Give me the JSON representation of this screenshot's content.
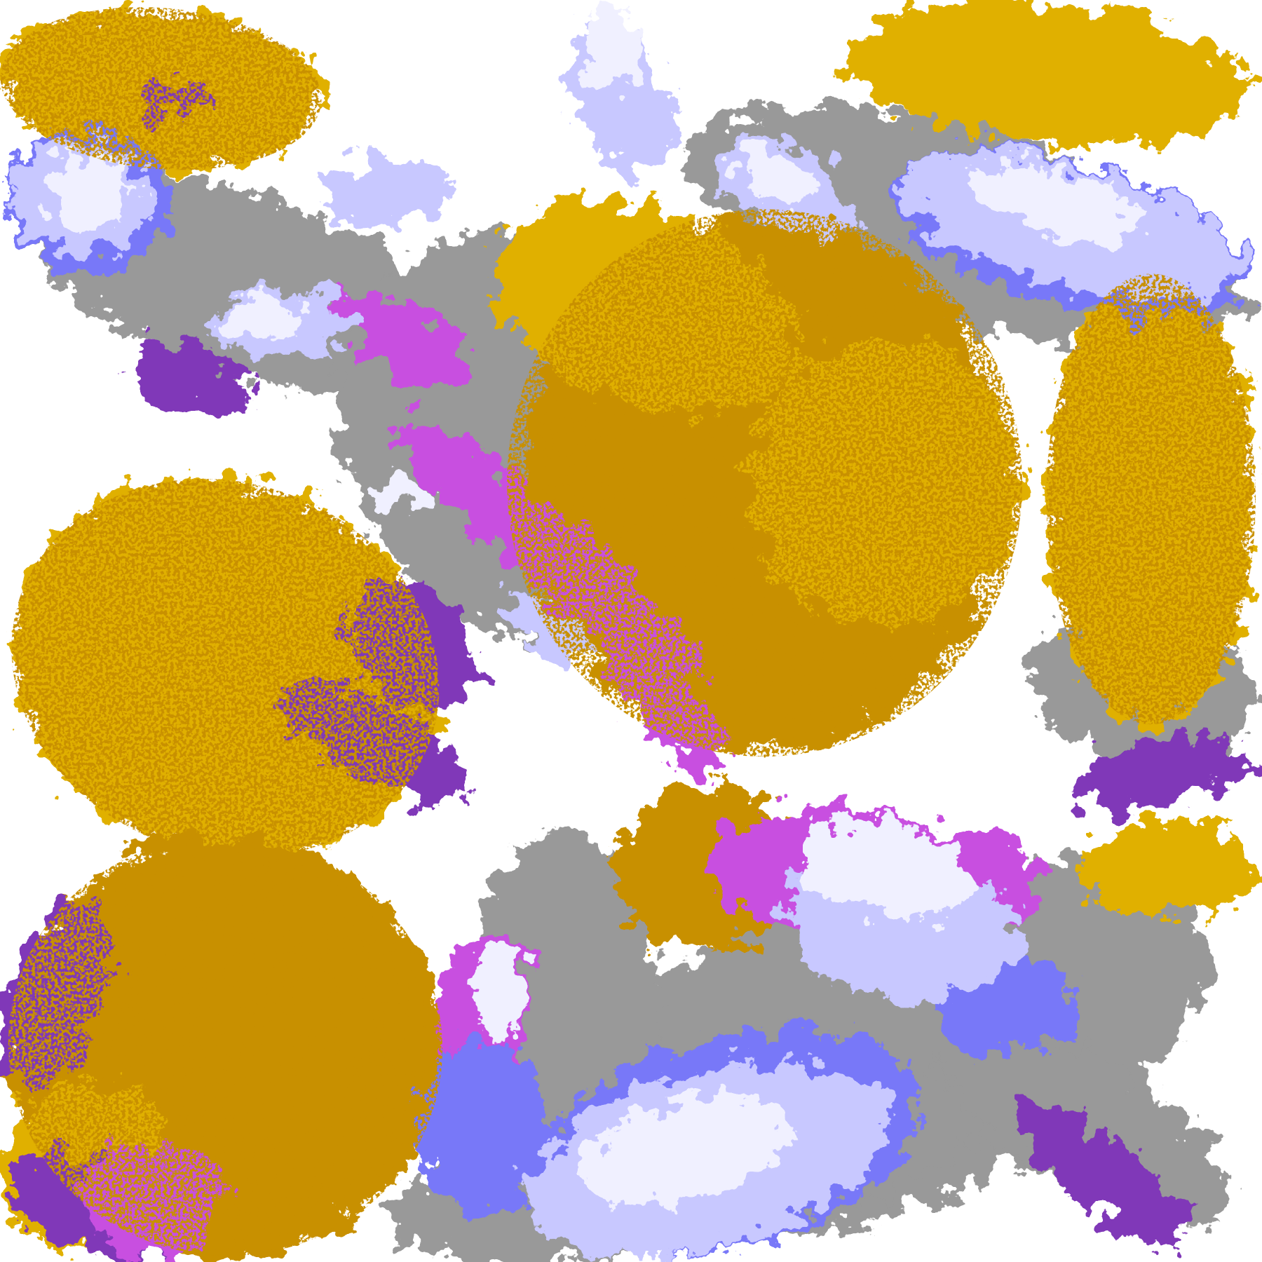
{
  "map": {
    "kind": "classified satellite cloud-type image",
    "colors": {
      "background": "#ffffff",
      "gold": "#e0b000",
      "dark_gold": "#c89000",
      "purple": "#8038b8",
      "magenta": "#c850e0",
      "blue": "#7878f8",
      "lavender": "#c8c8ff",
      "pale": "#f0f0ff",
      "gray": "#999999",
      "light_gray": "#c0c0c0"
    }
  }
}
